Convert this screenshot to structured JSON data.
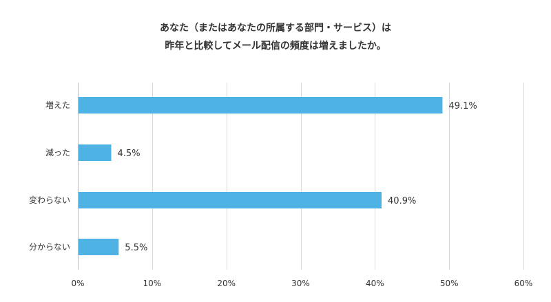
{
  "chart_data": {
    "type": "bar",
    "orientation": "horizontal",
    "title_lines": [
      "あなた（またはあなたの所属する部門・サービス）は",
      "昨年と比較してメール配信の頻度は増えましたか。"
    ],
    "categories": [
      "増えた",
      "減った",
      "変わらない",
      "分からない"
    ],
    "values": [
      49.1,
      4.5,
      40.9,
      5.5
    ],
    "value_labels": [
      "49.1%",
      "4.5%",
      "40.9%",
      "5.5%"
    ],
    "xlim": [
      0,
      60
    ],
    "x_ticks": [
      0,
      10,
      20,
      30,
      40,
      50,
      60
    ],
    "x_tick_labels": [
      "0%",
      "10%",
      "20%",
      "30%",
      "40%",
      "50%",
      "60%"
    ],
    "grid": true,
    "legend": "none",
    "bar_color": "#4eb3e4"
  }
}
